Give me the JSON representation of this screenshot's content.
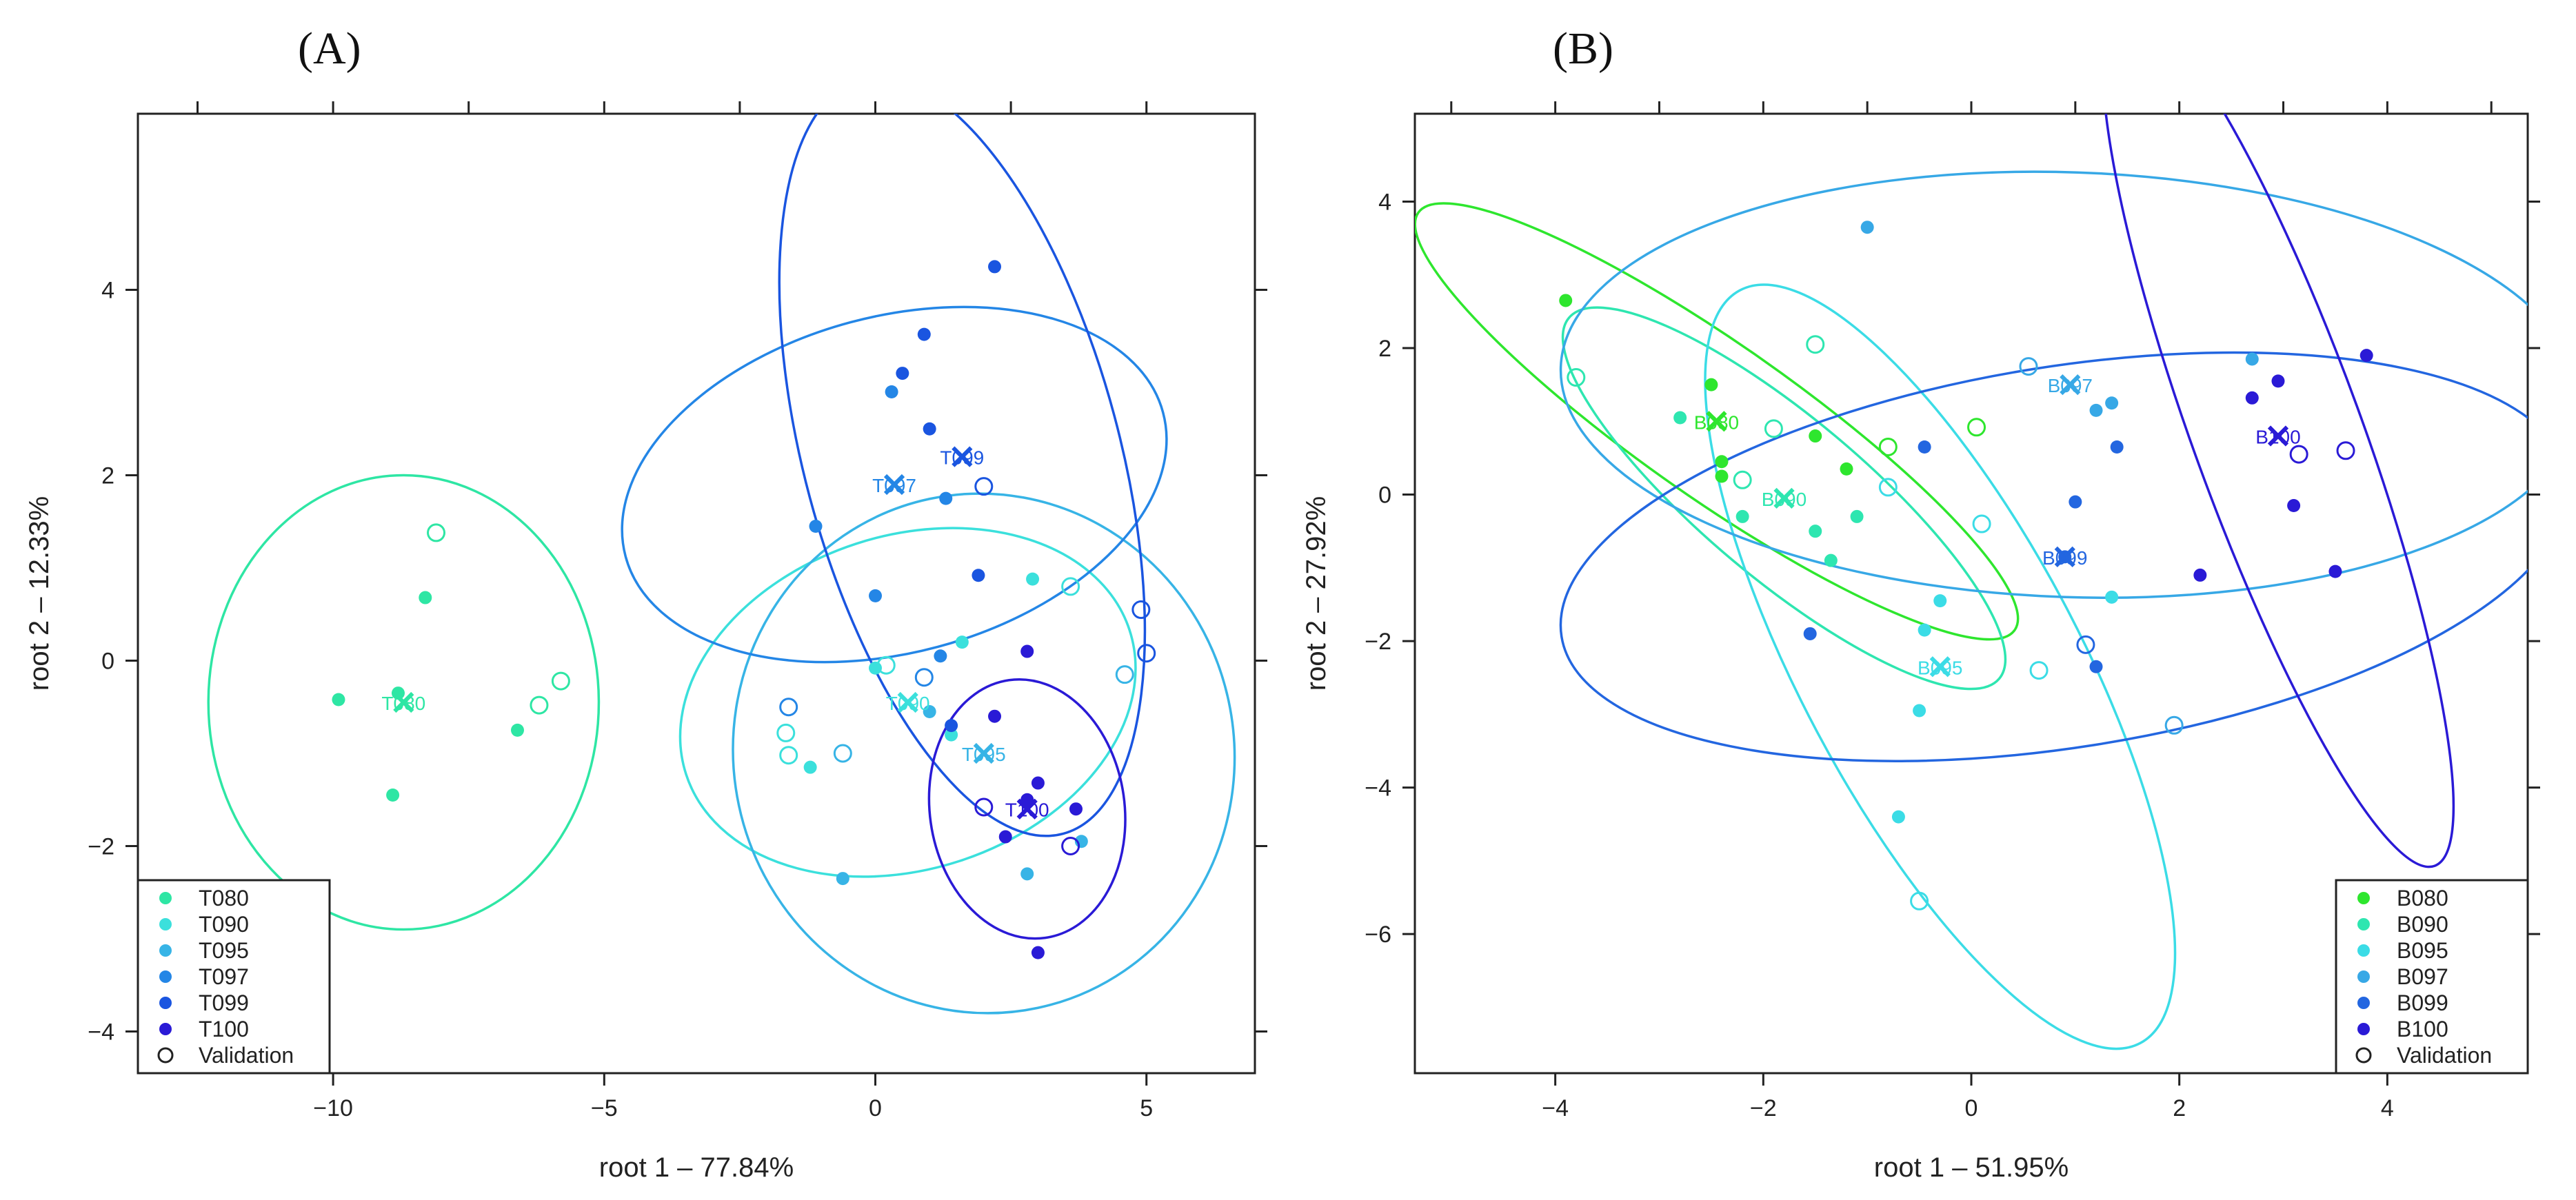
{
  "panels": [
    {
      "letter": "(A)",
      "xlabel": "root 1 – 77.84%",
      "ylabel": "root 2 – 12.33%",
      "xlim": [
        -13.6,
        7.0
      ],
      "ylim": [
        -4.45,
        5.9
      ],
      "xticks": [
        -10,
        -5,
        0,
        5
      ],
      "yticks": [
        -4,
        -2,
        0,
        2,
        4
      ],
      "xtick_labels": [
        "−10",
        "−5",
        "0",
        "5"
      ],
      "ytick_labels": [
        "−4",
        "−2",
        "0",
        "2",
        "4"
      ],
      "legend_position": "bottom-left",
      "legend": [
        {
          "label": "T080",
          "color": "#2ee6a4",
          "marker": "filled"
        },
        {
          "label": "T090",
          "color": "#3be0dc",
          "marker": "filled"
        },
        {
          "label": "T095",
          "color": "#37b4e6",
          "marker": "filled"
        },
        {
          "label": "T097",
          "color": "#2486e6",
          "marker": "filled"
        },
        {
          "label": "T099",
          "color": "#1a55e0",
          "marker": "filled"
        },
        {
          "label": "T100",
          "color": "#2a1ad6",
          "marker": "filled"
        },
        {
          "label": "Validation",
          "color": "#222222",
          "marker": "open"
        }
      ],
      "groups": [
        {
          "name": "T080",
          "color": "#2ee6a4",
          "centroid": [
            -8.7,
            -0.45
          ],
          "centroid_label": "T080",
          "ellipse": {
            "cx": -8.7,
            "cy": -0.45,
            "rx": 3.6,
            "ry": 2.45,
            "angle": 0
          },
          "points": [
            [
              -9.9,
              -0.42
            ],
            [
              -8.8,
              -0.35
            ],
            [
              -8.3,
              0.68
            ],
            [
              -6.6,
              -0.75
            ],
            [
              -8.9,
              -1.45
            ]
          ],
          "validation": [
            [
              -8.1,
              1.38
            ],
            [
              -6.2,
              -0.48
            ],
            [
              -5.8,
              -0.22
            ]
          ]
        },
        {
          "name": "T090",
          "color": "#3be0dc",
          "centroid": [
            0.6,
            -0.45
          ],
          "centroid_label": "T090",
          "ellipse": {
            "cx": 0.6,
            "cy": -0.45,
            "rx": 4.3,
            "ry": 1.8,
            "angle": 18
          },
          "points": [
            [
              -1.2,
              -1.15
            ],
            [
              0.0,
              -0.08
            ],
            [
              1.6,
              0.2
            ],
            [
              2.9,
              0.88
            ],
            [
              1.4,
              -0.8
            ]
          ],
          "validation": [
            [
              -1.6,
              -1.02
            ],
            [
              -1.65,
              -0.78
            ],
            [
              0.2,
              -0.05
            ],
            [
              3.6,
              0.8
            ]
          ]
        },
        {
          "name": "T095",
          "color": "#37b4e6",
          "centroid": [
            2.0,
            -1.0
          ],
          "centroid_label": "T095",
          "ellipse": {
            "cx": 2.0,
            "cy": -1.0,
            "rx": 4.8,
            "ry": 2.7,
            "angle": -78
          },
          "points": [
            [
              1.0,
              -0.55
            ],
            [
              2.8,
              -2.3
            ],
            [
              -0.6,
              -2.35
            ],
            [
              3.8,
              -1.95
            ]
          ],
          "validation": [
            [
              4.6,
              -0.15
            ],
            [
              -0.6,
              -1.0
            ]
          ]
        },
        {
          "name": "T097",
          "color": "#2486e6",
          "centroid": [
            0.35,
            1.9
          ],
          "centroid_label": "T097",
          "ellipse": {
            "cx": 0.35,
            "cy": 1.9,
            "rx": 3.1,
            "ry": 3.0,
            "angle": -75
          },
          "points": [
            [
              -1.1,
              1.45
            ],
            [
              0.0,
              0.7
            ],
            [
              0.3,
              2.9
            ],
            [
              1.3,
              1.75
            ],
            [
              1.2,
              0.05
            ]
          ],
          "validation": [
            [
              -1.6,
              -0.5
            ],
            [
              0.9,
              -0.18
            ]
          ]
        },
        {
          "name": "T099",
          "color": "#1a55e0",
          "centroid": [
            1.6,
            2.2
          ],
          "centroid_label": "T099",
          "ellipse": {
            "cx": 1.6,
            "cy": 2.2,
            "rx": 7.2,
            "ry": 1.7,
            "angle": -75
          },
          "points": [
            [
              0.9,
              3.52
            ],
            [
              0.5,
              3.1
            ],
            [
              2.2,
              4.25
            ],
            [
              1.0,
              2.5
            ],
            [
              1.9,
              0.92
            ],
            [
              1.4,
              -0.7
            ]
          ],
          "validation": [
            [
              2.0,
              1.88
            ],
            [
              4.9,
              0.55
            ],
            [
              5.0,
              0.08
            ]
          ]
        },
        {
          "name": "T100",
          "color": "#2a1ad6",
          "centroid": [
            2.8,
            -1.6
          ],
          "centroid_label": "T100",
          "ellipse": {
            "cx": 2.8,
            "cy": -1.6,
            "rx": 2.4,
            "ry": 1.05,
            "angle": -82
          },
          "points": [
            [
              2.2,
              -0.6
            ],
            [
              2.8,
              0.1
            ],
            [
              3.0,
              -1.32
            ],
            [
              2.8,
              -1.5
            ],
            [
              3.7,
              -1.6
            ],
            [
              2.4,
              -1.9
            ],
            [
              3.0,
              -3.15
            ]
          ],
          "validation": [
            [
              2.0,
              -1.58
            ],
            [
              3.6,
              -2.0
            ]
          ]
        }
      ]
    },
    {
      "letter": "(B)",
      "xlabel": "root 1 – 51.95%",
      "ylabel": "root 2 – 27.92%",
      "xlim": [
        -5.35,
        5.35
      ],
      "ylim": [
        -7.9,
        5.2
      ],
      "xticks": [
        -4,
        -2,
        0,
        2,
        4
      ],
      "yticks": [
        -6,
        -4,
        -2,
        0,
        2,
        4
      ],
      "xtick_labels": [
        "−4",
        "−2",
        "0",
        "2",
        "4"
      ],
      "ytick_labels": [
        "−6",
        "−4",
        "−2",
        "0",
        "2",
        "4"
      ],
      "legend_position": "bottom-right",
      "legend": [
        {
          "label": "B080",
          "color": "#2ee62e",
          "marker": "filled"
        },
        {
          "label": "B090",
          "color": "#2ee6b0",
          "marker": "filled"
        },
        {
          "label": "B095",
          "color": "#3bdce6",
          "marker": "filled"
        },
        {
          "label": "B097",
          "color": "#37a8e6",
          "marker": "filled"
        },
        {
          "label": "B099",
          "color": "#2366e0",
          "marker": "filled"
        },
        {
          "label": "B100",
          "color": "#2a1ad6",
          "marker": "filled"
        },
        {
          "label": "Validation",
          "color": "#222222",
          "marker": "open"
        }
      ],
      "groups": [
        {
          "name": "B080",
          "color": "#2ee62e",
          "centroid": [
            -2.45,
            1.0
          ],
          "centroid_label": "B080",
          "ellipse": {
            "cx": -2.45,
            "cy": 1.0,
            "rx": 3.5,
            "ry": 1.05,
            "angle": -35
          },
          "points": [
            [
              -3.9,
              2.65
            ],
            [
              -2.5,
              1.5
            ],
            [
              -2.4,
              0.25
            ],
            [
              -1.2,
              0.35
            ],
            [
              -1.5,
              0.8
            ],
            [
              -2.4,
              0.45
            ]
          ],
          "validation": [
            [
              -0.8,
              0.65
            ],
            [
              0.05,
              0.92
            ]
          ]
        },
        {
          "name": "B090",
          "color": "#2ee6b0",
          "centroid": [
            -1.8,
            -0.05
          ],
          "centroid_label": "B090",
          "ellipse": {
            "cx": -1.8,
            "cy": -0.05,
            "rx": 2.7,
            "ry": 1.1,
            "angle": -40
          },
          "points": [
            [
              -2.8,
              1.05
            ],
            [
              -2.2,
              -0.3
            ],
            [
              -1.5,
              -0.5
            ],
            [
              -1.35,
              -0.9
            ],
            [
              -1.1,
              -0.3
            ]
          ],
          "validation": [
            [
              -3.8,
              1.6
            ],
            [
              -2.2,
              0.2
            ],
            [
              -1.9,
              0.9
            ],
            [
              -1.5,
              2.05
            ]
          ]
        },
        {
          "name": "B095",
          "color": "#3bdce6",
          "centroid": [
            -0.3,
            -2.35
          ],
          "centroid_label": "B095",
          "ellipse": {
            "cx": -0.3,
            "cy": -2.35,
            "rx": 4.1,
            "ry": 1.9,
            "angle": -62
          },
          "points": [
            [
              -0.45,
              -1.85
            ],
            [
              -0.5,
              -2.95
            ],
            [
              -0.7,
              -4.4
            ],
            [
              -0.3,
              -1.45
            ],
            [
              1.35,
              -1.4
            ]
          ],
          "validation": [
            [
              -0.5,
              -5.55
            ],
            [
              0.1,
              -0.4
            ],
            [
              0.65,
              -2.4
            ],
            [
              -0.8,
              0.1
            ]
          ]
        },
        {
          "name": "B097",
          "color": "#37a8e6",
          "centroid": [
            0.95,
            1.5
          ],
          "centroid_label": "B097",
          "ellipse": {
            "cx": 0.95,
            "cy": 1.5,
            "rx": 4.9,
            "ry": 2.9,
            "angle": -2
          },
          "points": [
            [
              -1.0,
              3.65
            ],
            [
              1.35,
              1.25
            ],
            [
              1.2,
              1.15
            ],
            [
              2.7,
              1.85
            ]
          ],
          "validation": [
            [
              0.55,
              1.75
            ],
            [
              1.95,
              -3.15
            ]
          ]
        },
        {
          "name": "B099",
          "color": "#2366e0",
          "centroid": [
            0.9,
            -0.85
          ],
          "centroid_label": "B099",
          "ellipse": {
            "cx": 0.9,
            "cy": -0.85,
            "rx": 4.9,
            "ry": 2.6,
            "angle": 9
          },
          "points": [
            [
              -0.45,
              0.65
            ],
            [
              1.0,
              -0.1
            ],
            [
              1.4,
              0.65
            ],
            [
              -1.55,
              -1.9
            ],
            [
              1.2,
              -2.35
            ],
            [
              0.9,
              -0.85
            ]
          ],
          "validation": [
            [
              1.1,
              -2.05
            ]
          ]
        },
        {
          "name": "B100",
          "color": "#2a1ad6",
          "centroid": [
            2.95,
            0.8
          ],
          "centroid_label": "B100",
          "ellipse": {
            "cx": 2.95,
            "cy": 0.8,
            "rx": 4.4,
            "ry": 1.15,
            "angle": -70
          },
          "points": [
            [
              2.95,
              1.55
            ],
            [
              2.7,
              1.32
            ],
            [
              3.8,
              1.9
            ],
            [
              3.1,
              -0.15
            ],
            [
              2.2,
              -1.1
            ],
            [
              3.5,
              -1.05
            ]
          ],
          "validation": [
            [
              3.15,
              0.55
            ],
            [
              3.6,
              0.6
            ]
          ]
        }
      ]
    }
  ]
}
